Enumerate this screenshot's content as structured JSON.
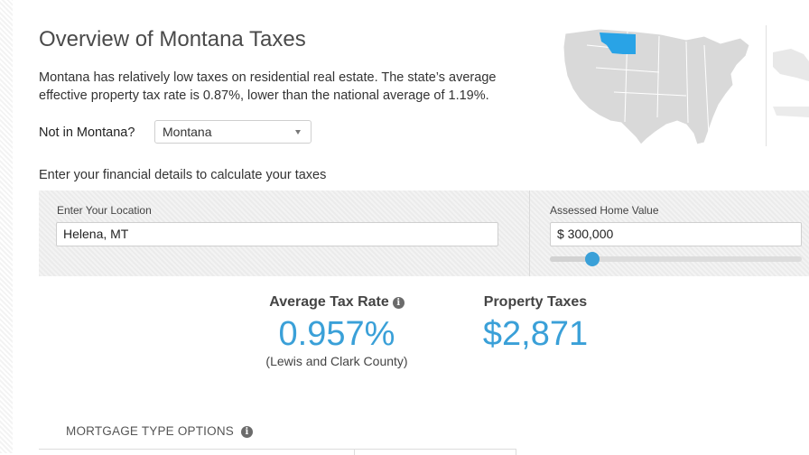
{
  "header": {
    "title": "Overview of Montana Taxes",
    "intro": "Montana has relatively low taxes on residential real estate. The state’s average effective property tax rate is 0.87%, lower than the national average of 1.19%."
  },
  "state_selector": {
    "label": "Not in Montana?",
    "selected": "Montana"
  },
  "calculator": {
    "subhead": "Enter your financial details to calculate your taxes",
    "location": {
      "label": "Enter Your Location",
      "value": "Helena, MT"
    },
    "home_value": {
      "label": "Assessed Home Value",
      "value": "$ 300,000",
      "slider_fraction": 0.17
    }
  },
  "results": {
    "tax_rate": {
      "label": "Average Tax Rate",
      "value": "0.957%",
      "note": "(Lewis and Clark County)"
    },
    "property_taxes": {
      "label": "Property Taxes",
      "value": "$2,871"
    }
  },
  "mortgage": {
    "label": "MORTGAGE TYPE OPTIONS"
  },
  "colors": {
    "accent": "#3aa0d8",
    "map_land": "#d9d9d9",
    "map_highlight": "#29a3e6"
  },
  "icons": {
    "info": "info-icon",
    "dropdown": "chevron-down-icon",
    "map": "us-map"
  }
}
